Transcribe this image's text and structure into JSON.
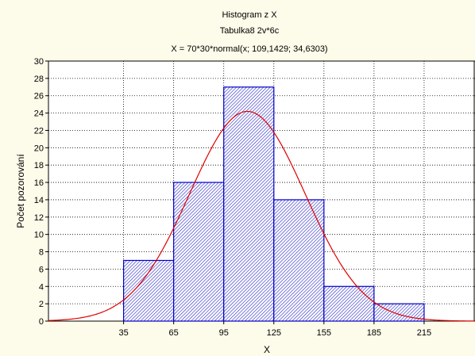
{
  "chart_data": {
    "type": "bar",
    "title": "Histogram z  X",
    "subtitle": "Tabulka8 2v*6c",
    "formula": "X = 70*30*normal(x; 109,1429; 34,6303)",
    "xlabel": "X",
    "ylabel": "Počet pozorování",
    "xlim": [
      -10,
      245
    ],
    "ylim": [
      0,
      30
    ],
    "x_ticks": [
      35,
      65,
      95,
      125,
      155,
      185,
      215
    ],
    "y_ticks": [
      0,
      2,
      4,
      6,
      8,
      10,
      12,
      14,
      16,
      18,
      20,
      22,
      24,
      26,
      28,
      30
    ],
    "bins": [
      {
        "from": 35,
        "to": 65,
        "value": 7
      },
      {
        "from": 65,
        "to": 95,
        "value": 16
      },
      {
        "from": 95,
        "to": 125,
        "value": 27
      },
      {
        "from": 125,
        "to": 155,
        "value": 14
      },
      {
        "from": 155,
        "to": 185,
        "value": 4
      },
      {
        "from": 185,
        "to": 215,
        "value": 2
      }
    ],
    "normal_fit": {
      "n": 70,
      "bin_width": 30,
      "mean": 109.1429,
      "sd": 34.6303
    },
    "grid": true,
    "colors": {
      "bar_stroke": "#0000c8",
      "hatch": "#3333cc",
      "curve": "#e00000",
      "background": "#fdfbe9"
    }
  }
}
